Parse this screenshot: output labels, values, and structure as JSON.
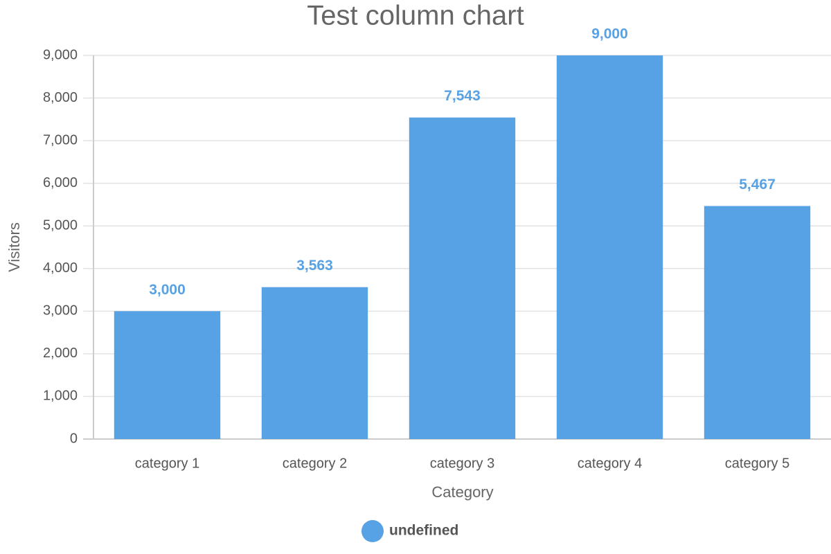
{
  "chart_data": {
    "type": "bar",
    "title": "Test column chart",
    "x_label": "Category",
    "y_label": "Visitors",
    "categories": [
      "category 1",
      "category 2",
      "category 3",
      "category 4",
      "category 5"
    ],
    "series": [
      {
        "name": "undefined",
        "color": "#57a1e5",
        "values": [
          3000,
          3563,
          7543,
          9000,
          5467
        ],
        "value_labels": [
          "3,000",
          "3,563",
          "7,543",
          "9,000",
          "5,467"
        ]
      }
    ],
    "ylim": [
      0,
      9000
    ],
    "yticks": [
      0,
      {
        "value": 1000,
        "label": "1,000"
      },
      {
        "value": 2000,
        "label": "2,000"
      },
      {
        "value": 3000,
        "label": "3,000"
      },
      {
        "value": 4000,
        "label": "4,000"
      },
      {
        "value": 5000,
        "label": "5,000"
      },
      {
        "value": 6000,
        "label": "6,000"
      },
      {
        "value": 7000,
        "label": "7,000"
      },
      {
        "value": 8000,
        "label": "8,000"
      },
      {
        "value": 9000,
        "label": "9,000"
      }
    ],
    "grid": true,
    "legend": "bottom"
  }
}
